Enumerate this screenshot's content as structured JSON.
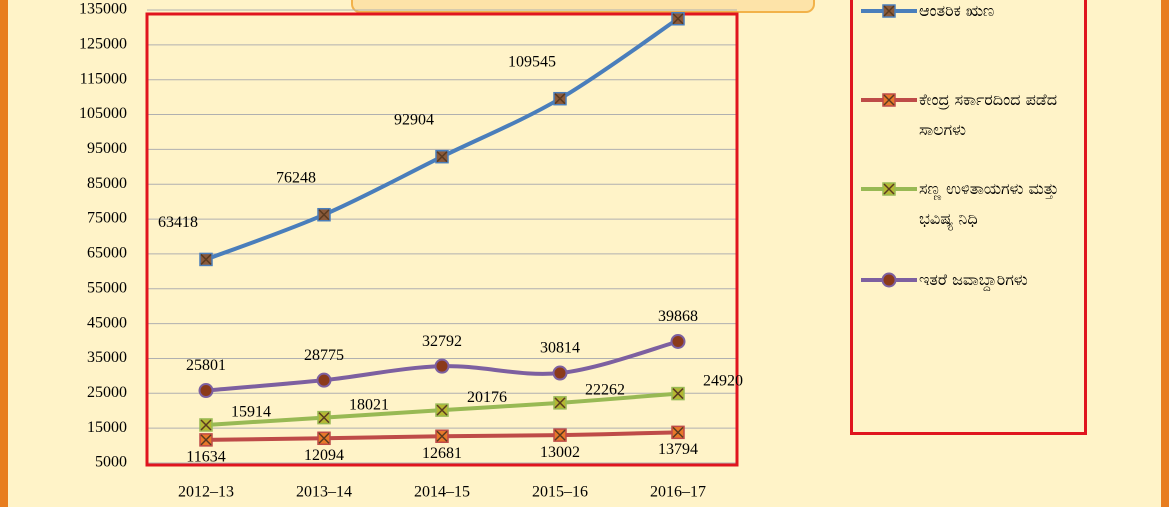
{
  "chart_data": {
    "type": "line",
    "categories": [
      "2012–13",
      "2013–14",
      "2014–15",
      "2015–16",
      "2016–17"
    ],
    "series": [
      {
        "name": "ಆಂತರಿಕ ಋಣ",
        "color": "#4a7ebb",
        "values": [
          63418,
          76248,
          92904,
          109545,
          132489
        ]
      },
      {
        "name": "ಕೇಂದ್ರ ಸರ್ಕಾರದಿಂದ ಪಡೆದ ಸಾಲಗಳು",
        "color": "#be4b48",
        "values": [
          11634,
          12094,
          12681,
          13002,
          13794
        ]
      },
      {
        "name": "ಸಣ್ಣ ಉಳಿತಾಯಗಳು ಮತ್ತು ಭವಿಷ್ಯ ನಿಧಿ",
        "color": "#98b954",
        "values": [
          15914,
          18021,
          20176,
          22262,
          24920
        ]
      },
      {
        "name": "ಇತರೆ ಜವಾಬ್ದಾರಿಗಳು",
        "color": "#7d60a0",
        "values": [
          25801,
          28775,
          32792,
          30814,
          39868
        ]
      }
    ],
    "ylim": [
      5000,
      135000
    ],
    "yticks": [
      5000,
      15000,
      25000,
      35000,
      45000,
      55000,
      65000,
      75000,
      85000,
      95000,
      105000,
      115000,
      125000,
      135000
    ],
    "grid": true
  }
}
